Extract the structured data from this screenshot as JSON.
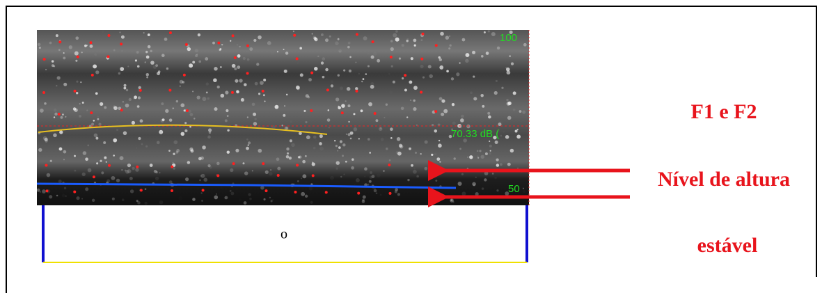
{
  "spectrogram": {
    "top_label": "100",
    "mid_label": "70.33 dB (",
    "bottom_label": "50"
  },
  "segment": {
    "label": "o"
  },
  "annotations": {
    "formants": "F1 e F2",
    "pitch": "Nível de altura",
    "stable": "estável"
  }
}
